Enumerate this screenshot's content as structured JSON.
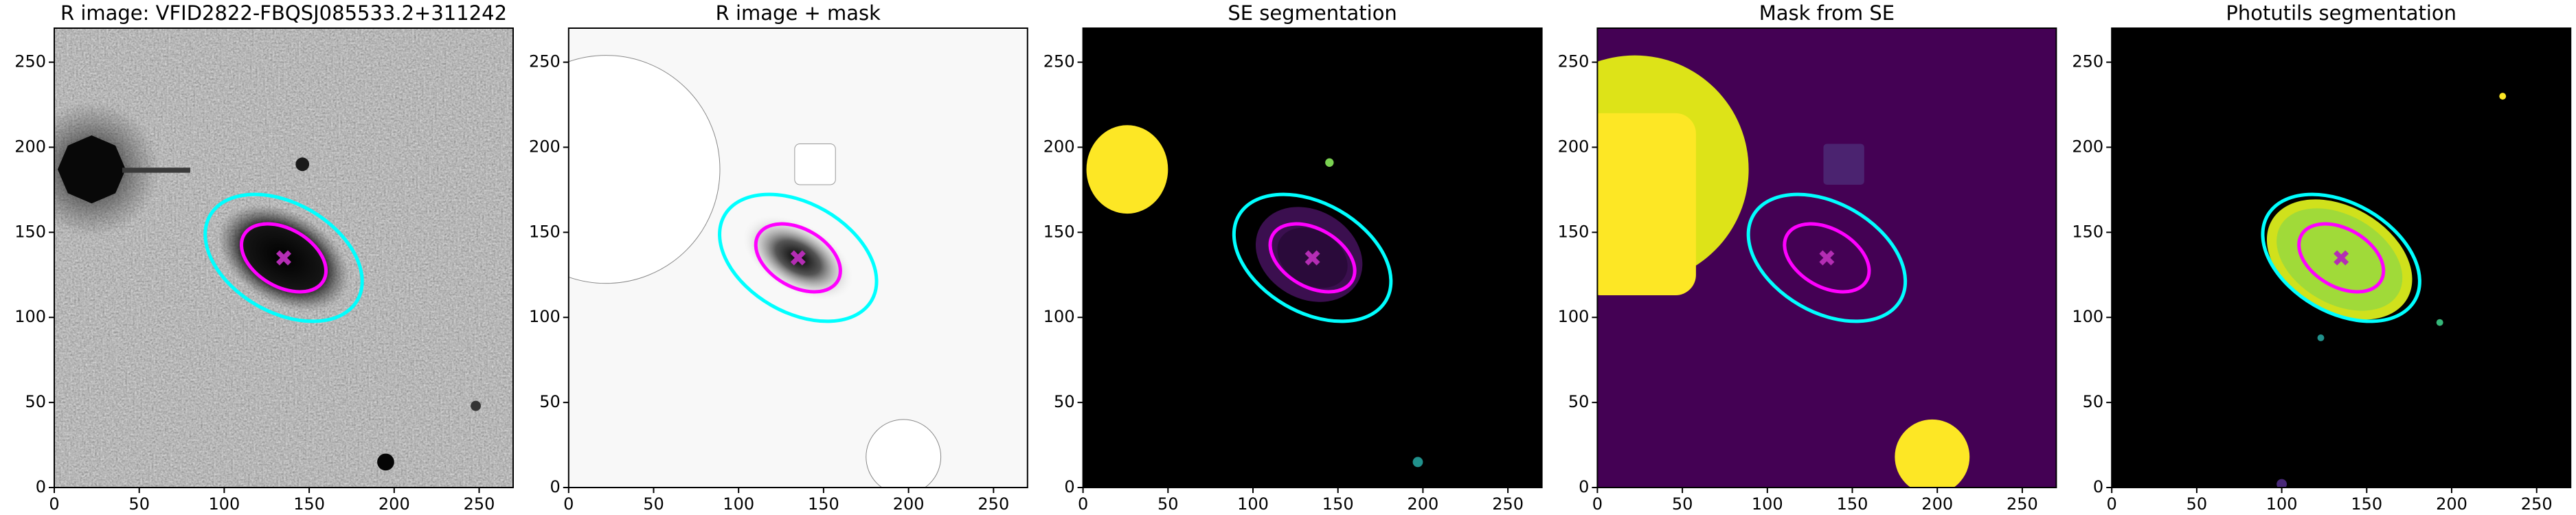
{
  "chart_data": [
    {
      "type": "image",
      "title": "R image: VFID2822-FBQSJ085533.2+311242",
      "xlim": [
        0,
        270
      ],
      "ylim": [
        0,
        270
      ],
      "xticks": [
        0,
        50,
        100,
        150,
        200,
        250
      ],
      "yticks": [
        0,
        50,
        100,
        150,
        200,
        250
      ],
      "ellipses": [
        {
          "color": "#00ffff",
          "x": 135,
          "y": 135,
          "a": 50,
          "b": 32,
          "angle": -30
        },
        {
          "color": "#ff00ff",
          "x": 135,
          "y": 135,
          "a": 27,
          "b": 17,
          "angle": -30
        }
      ],
      "marker": {
        "x": 135,
        "y": 135,
        "color": "#b42db4"
      }
    },
    {
      "type": "image",
      "title": "R image + mask",
      "xlim": [
        0,
        270
      ],
      "ylim": [
        0,
        270
      ],
      "xticks": [
        0,
        50,
        100,
        150,
        200,
        250
      ],
      "yticks": [
        0,
        50,
        100,
        150,
        200,
        250
      ],
      "ellipses": [
        {
          "color": "#00ffff",
          "x": 135,
          "y": 135,
          "a": 50,
          "b": 32,
          "angle": -30
        },
        {
          "color": "#ff00ff",
          "x": 135,
          "y": 135,
          "a": 27,
          "b": 17,
          "angle": -30
        }
      ],
      "marker": {
        "x": 135,
        "y": 135,
        "color": "#b42db4"
      }
    },
    {
      "type": "image",
      "title": "SE segmentation",
      "xlim": [
        0,
        270
      ],
      "ylim": [
        0,
        270
      ],
      "xticks": [
        0,
        50,
        100,
        150,
        200,
        250
      ],
      "yticks": [
        0,
        50,
        100,
        150,
        200,
        250
      ],
      "ellipses": [
        {
          "color": "#00ffff",
          "x": 135,
          "y": 135,
          "a": 50,
          "b": 32,
          "angle": -30
        },
        {
          "color": "#ff00ff",
          "x": 135,
          "y": 135,
          "a": 27,
          "b": 17,
          "angle": -30
        }
      ],
      "marker": {
        "x": 135,
        "y": 135,
        "color": "#b42db4"
      }
    },
    {
      "type": "image",
      "title": "Mask from SE",
      "xlim": [
        0,
        270
      ],
      "ylim": [
        0,
        270
      ],
      "xticks": [
        0,
        50,
        100,
        150,
        200,
        250
      ],
      "yticks": [
        0,
        50,
        100,
        150,
        200,
        250
      ],
      "ellipses": [
        {
          "color": "#00ffff",
          "x": 135,
          "y": 135,
          "a": 50,
          "b": 32,
          "angle": -30
        },
        {
          "color": "#ff00ff",
          "x": 135,
          "y": 135,
          "a": 27,
          "b": 17,
          "angle": -30
        }
      ],
      "marker": {
        "x": 135,
        "y": 135,
        "color": "#b42db4"
      }
    },
    {
      "type": "image",
      "title": "Photutils segmentation",
      "xlim": [
        0,
        270
      ],
      "ylim": [
        0,
        270
      ],
      "xticks": [
        0,
        50,
        100,
        150,
        200,
        250
      ],
      "yticks": [
        0,
        50,
        100,
        150,
        200,
        250
      ],
      "ellipses": [
        {
          "color": "#00ffff",
          "x": 135,
          "y": 135,
          "a": 50,
          "b": 32,
          "angle": -30
        },
        {
          "color": "#ff00ff",
          "x": 135,
          "y": 135,
          "a": 27,
          "b": 17,
          "angle": -30
        }
      ],
      "marker": {
        "x": 135,
        "y": 135,
        "color": "#b42db4"
      }
    }
  ]
}
